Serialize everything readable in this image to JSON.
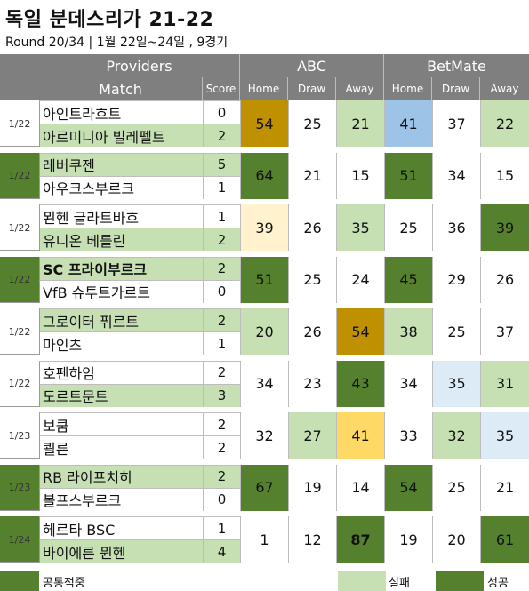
{
  "title": "독일 분데스리가 21-22",
  "subtitle": "Round 20/34 | 1월 22일~24일 , 9경기",
  "header": {
    "providers": "Providers",
    "match": "Match",
    "score": "Score",
    "provider_names": [
      "ABC",
      "BetMate"
    ],
    "outcomes": [
      "Home",
      "Draw",
      "Away"
    ]
  },
  "colors": {
    "header_bg": "#7f7f7f",
    "correct_green": "#55802e",
    "wrong_light_green": "#c6e0b4",
    "winner_cell": "#c6e0b4",
    "gold": "#bf9000",
    "light_yellow": "#fff2cc",
    "yellow": "#ffd966",
    "light_blue": "#9dc3e6",
    "pale_blue": "#ddebf7"
  },
  "matches": [
    {
      "date": "1/22",
      "group": "g-wrong",
      "home": "아인트라흐트",
      "home_score": "0",
      "home_bold": false,
      "away": "아르미니아 빌레펠트",
      "away_score": "2",
      "away_bold": false,
      "winner": "away",
      "abc": [
        "54",
        "25",
        "21"
      ],
      "abc_bg": [
        "#bf9000",
        "#ffffff",
        "#c6e0b4"
      ],
      "abc_bold": [
        false,
        false,
        false
      ],
      "bm": [
        "41",
        "37",
        "22"
      ],
      "bm_bg": [
        "#9dc3e6",
        "#ffffff",
        "#c6e0b4"
      ],
      "bm_bold": [
        false,
        false,
        false
      ]
    },
    {
      "date": "1/22",
      "group": "g-correct",
      "home": "레버쿠젠",
      "home_score": "5",
      "home_bold": false,
      "away": "아우크스부르크",
      "away_score": "1",
      "away_bold": false,
      "winner": "home",
      "abc": [
        "64",
        "21",
        "15"
      ],
      "abc_bg": [
        "#55802e",
        "#ffffff",
        "#ffffff"
      ],
      "abc_bold": [
        false,
        false,
        false
      ],
      "bm": [
        "51",
        "34",
        "15"
      ],
      "bm_bg": [
        "#55802e",
        "#ffffff",
        "#ffffff"
      ],
      "bm_bold": [
        false,
        false,
        false
      ]
    },
    {
      "date": "1/22",
      "group": "g-wrong",
      "home": "묀헨 글라트바흐",
      "home_score": "1",
      "home_bold": false,
      "away": "유니온 베를린",
      "away_score": "2",
      "away_bold": false,
      "winner": "away",
      "abc": [
        "39",
        "26",
        "35"
      ],
      "abc_bg": [
        "#fff2cc",
        "#ffffff",
        "#c6e0b4"
      ],
      "abc_bold": [
        false,
        false,
        false
      ],
      "bm": [
        "25",
        "36",
        "39"
      ],
      "bm_bg": [
        "#ffffff",
        "#ffffff",
        "#55802e"
      ],
      "bm_bold": [
        false,
        false,
        false
      ]
    },
    {
      "date": "1/22",
      "group": "g-correct",
      "home": "SC 프라이부르크",
      "home_score": "2",
      "home_bold": true,
      "away": "VfB 슈투트가르트",
      "away_score": "0",
      "away_bold": false,
      "winner": "home",
      "abc": [
        "51",
        "25",
        "24"
      ],
      "abc_bg": [
        "#55802e",
        "#ffffff",
        "#ffffff"
      ],
      "abc_bold": [
        false,
        false,
        false
      ],
      "bm": [
        "45",
        "29",
        "26"
      ],
      "bm_bg": [
        "#55802e",
        "#ffffff",
        "#ffffff"
      ],
      "bm_bold": [
        false,
        false,
        false
      ]
    },
    {
      "date": "1/22",
      "group": "g-wrong",
      "home": "그로이터 퓌르트",
      "home_score": "2",
      "home_bold": false,
      "away": "마인츠",
      "away_score": "1",
      "away_bold": false,
      "winner": "home",
      "abc": [
        "20",
        "26",
        "54"
      ],
      "abc_bg": [
        "#c6e0b4",
        "#ffffff",
        "#bf9000"
      ],
      "abc_bold": [
        false,
        false,
        false
      ],
      "bm": [
        "38",
        "25",
        "37"
      ],
      "bm_bg": [
        "#c6e0b4",
        "#ffffff",
        "#ffffff"
      ],
      "bm_bold": [
        false,
        false,
        false
      ]
    },
    {
      "date": "1/22",
      "group": "g-wrong",
      "home": "호펜하임",
      "home_score": "2",
      "home_bold": false,
      "away": "도르트문트",
      "away_score": "3",
      "away_bold": false,
      "winner": "away",
      "abc": [
        "34",
        "23",
        "43"
      ],
      "abc_bg": [
        "#ffffff",
        "#ffffff",
        "#55802e"
      ],
      "abc_bold": [
        false,
        false,
        false
      ],
      "bm": [
        "34",
        "35",
        "31"
      ],
      "bm_bg": [
        "#ffffff",
        "#ddebf7",
        "#c6e0b4"
      ],
      "bm_bold": [
        false,
        false,
        false
      ]
    },
    {
      "date": "1/23",
      "group": "g-wrong",
      "home": "보쿰",
      "home_score": "2",
      "home_bold": false,
      "away": "쾰른",
      "away_score": "2",
      "away_bold": false,
      "winner": "none",
      "abc": [
        "32",
        "27",
        "41"
      ],
      "abc_bg": [
        "#ffffff",
        "#c6e0b4",
        "#ffd966"
      ],
      "abc_bold": [
        false,
        false,
        false
      ],
      "bm": [
        "33",
        "32",
        "35"
      ],
      "bm_bg": [
        "#ffffff",
        "#c6e0b4",
        "#ddebf7"
      ],
      "bm_bold": [
        false,
        false,
        false
      ]
    },
    {
      "date": "1/23",
      "group": "g-correct",
      "home": "RB 라이프치히",
      "home_score": "2",
      "home_bold": false,
      "away": "볼프스부르크",
      "away_score": "0",
      "away_bold": false,
      "winner": "home",
      "abc": [
        "67",
        "19",
        "14"
      ],
      "abc_bg": [
        "#55802e",
        "#ffffff",
        "#ffffff"
      ],
      "abc_bold": [
        false,
        false,
        false
      ],
      "bm": [
        "54",
        "25",
        "21"
      ],
      "bm_bg": [
        "#55802e",
        "#ffffff",
        "#ffffff"
      ],
      "bm_bold": [
        false,
        false,
        false
      ]
    },
    {
      "date": "1/24",
      "group": "g-correct",
      "home": "헤르타 BSC",
      "home_score": "1",
      "home_bold": false,
      "away": "바이에른 뮌헨",
      "away_score": "4",
      "away_bold": false,
      "winner": "away",
      "abc": [
        "1",
        "12",
        "87"
      ],
      "abc_bg": [
        "#ffffff",
        "#ffffff",
        "#55802e"
      ],
      "abc_bold": [
        false,
        false,
        true
      ],
      "bm": [
        "19",
        "20",
        "61"
      ],
      "bm_bg": [
        "#ffffff",
        "#ffffff",
        "#55802e"
      ],
      "bm_bold": [
        false,
        false,
        false
      ]
    }
  ],
  "legend": {
    "common": "공통적중",
    "fail": "실패",
    "success": "성공"
  }
}
